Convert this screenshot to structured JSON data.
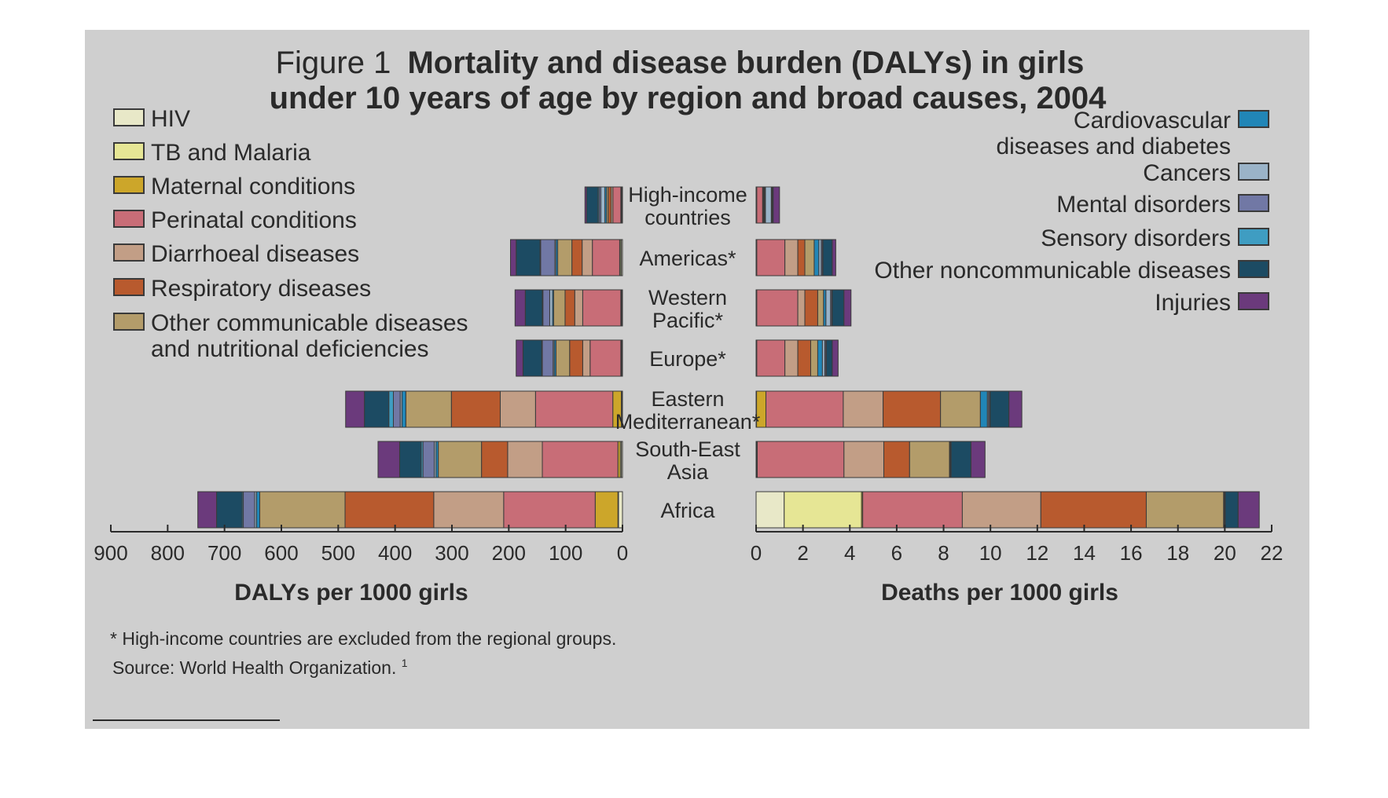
{
  "figure": {
    "title_prefix": "Figure 1",
    "title_line1": "Mortality and disease burden (DALYs) in girls",
    "title_line2": "under 10 years of age by region and broad causes, 2004",
    "footnote": "* High-income countries are excluded from the regional groups.",
    "source": "Source: World Health Organization.",
    "source_ref": "1"
  },
  "colors": {
    "background": "#cfcfcf",
    "HIV": "#e8e8c8",
    "TB and Malaria": "#e6e695",
    "Maternal conditions": "#cca62a",
    "Perinatal conditions": "#c86d77",
    "Diarrhoeal diseases": "#c29e86",
    "Respiratory diseases": "#b85a2e",
    "Other communicable diseases and nutritional deficiencies": "#b39c6a",
    "Cardiovascular diseases and diabetes": "#2186b7",
    "Cancers": "#9ab3c8",
    "Mental disorders": "#7178a5",
    "Sensory disorders": "#3f9dc2",
    "Other noncommunicable diseases": "#1c4b63",
    "Injuries": "#6b3a7c"
  },
  "legend_left": [
    {
      "label": "HIV",
      "key": "HIV"
    },
    {
      "label": "TB and Malaria",
      "key": "TB and Malaria"
    },
    {
      "label": "Maternal conditions",
      "key": "Maternal conditions"
    },
    {
      "label": "Perinatal conditions",
      "key": "Perinatal conditions"
    },
    {
      "label": "Diarrhoeal diseases",
      "key": "Diarrhoeal diseases"
    },
    {
      "label": "Respiratory diseases",
      "key": "Respiratory diseases"
    },
    {
      "label": "Other communicable diseases",
      "label2": "and nutritional deficiencies",
      "key": "Other communicable diseases and nutritional deficiencies"
    }
  ],
  "legend_right": [
    {
      "label": "Cardiovascular",
      "label2": "diseases and diabetes",
      "key": "Cardiovascular diseases and diabetes"
    },
    {
      "label": "Cancers",
      "key": "Cancers"
    },
    {
      "label": "Mental disorders",
      "key": "Mental disorders"
    },
    {
      "label": "Sensory disorders",
      "key": "Sensory disorders"
    },
    {
      "label": "Other noncommunicable diseases",
      "key": "Other noncommunicable diseases"
    },
    {
      "label": "Injuries",
      "key": "Injuries"
    }
  ],
  "chart_data": [
    {
      "type": "bar",
      "orientation": "horizontal",
      "stacked": true,
      "direction": "right-to-left",
      "xlabel": "DALYs per 1000 girls",
      "xlim": [
        0,
        900
      ],
      "xticks": [
        "900",
        "800",
        "700",
        "600",
        "500",
        "400",
        "300",
        "200",
        "100",
        "0"
      ],
      "categories": [
        {
          "line1": "High-income",
          "line2": "countries"
        },
        {
          "line1": "Americas*",
          "line2": ""
        },
        {
          "line1": "Western",
          "line2": "Pacific*"
        },
        {
          "line1": "Europe*",
          "line2": ""
        },
        {
          "line1": "Eastern",
          "line2": "Mediterranean*"
        },
        {
          "line1": "South-East",
          "line2": "Asia"
        },
        {
          "line1": "Africa",
          "line2": ""
        }
      ],
      "series": [
        {
          "name": "HIV",
          "values": [
            1,
            2,
            1,
            1,
            1,
            2,
            7
          ]
        },
        {
          "name": "TB and Malaria",
          "values": [
            1,
            2,
            1,
            1,
            1,
            2,
            1
          ]
        },
        {
          "name": "Maternal conditions",
          "values": [
            1,
            1,
            1,
            1,
            15,
            4,
            40
          ]
        },
        {
          "name": "Perinatal conditions",
          "values": [
            14,
            48,
            67,
            54,
            136,
            133,
            161
          ]
        },
        {
          "name": "Diarrhoeal diseases",
          "values": [
            3,
            18,
            14,
            13,
            62,
            61,
            123
          ]
        },
        {
          "name": "Respiratory diseases",
          "values": [
            5,
            18,
            17,
            23,
            86,
            46,
            156
          ]
        },
        {
          "name": "Other communicable diseases and nutritional deficiencies",
          "values": [
            3,
            25,
            20,
            24,
            80,
            76,
            150
          ]
        },
        {
          "name": "Cardiovascular diseases and diabetes",
          "values": [
            3,
            3,
            2,
            3,
            7,
            4,
            6
          ]
        },
        {
          "name": "Cancers",
          "values": [
            7,
            2,
            5,
            2,
            3,
            3,
            3
          ]
        },
        {
          "name": "Mental disorders",
          "values": [
            3,
            25,
            12,
            19,
            12,
            20,
            20
          ]
        },
        {
          "name": "Sensory disorders",
          "values": [
            2,
            1,
            1,
            1,
            8,
            3,
            2
          ]
        },
        {
          "name": "Other noncommunicable diseases",
          "values": [
            20,
            42,
            30,
            33,
            43,
            38,
            45
          ]
        },
        {
          "name": "Injuries",
          "values": [
            3,
            10,
            18,
            12,
            33,
            38,
            33
          ]
        }
      ]
    },
    {
      "type": "bar",
      "orientation": "horizontal",
      "stacked": true,
      "direction": "left-to-right",
      "xlabel": "Deaths per 1000 girls",
      "xlim": [
        0,
        22
      ],
      "xticks": [
        "0",
        "2",
        "4",
        "6",
        "8",
        "10",
        "12",
        "14",
        "16",
        "18",
        "20",
        "22"
      ],
      "categories": [
        {
          "line1": "High-income",
          "line2": "countries"
        },
        {
          "line1": "Americas*",
          "line2": ""
        },
        {
          "line1": "Western",
          "line2": "Pacific*"
        },
        {
          "line1": "Europe*",
          "line2": ""
        },
        {
          "line1": "Eastern",
          "line2": "Mediterranean*"
        },
        {
          "line1": "South-East",
          "line2": "Asia"
        },
        {
          "line1": "Africa",
          "line2": ""
        }
      ],
      "series": [
        {
          "name": "HIV",
          "values": [
            0.01,
            0.01,
            0.01,
            0.01,
            0.01,
            0.02,
            1.2
          ]
        },
        {
          "name": "TB and Malaria",
          "values": [
            0.01,
            0.01,
            0.01,
            0.01,
            0.01,
            0.02,
            3.3
          ]
        },
        {
          "name": "Maternal conditions",
          "values": [
            0.01,
            0.01,
            0.01,
            0.01,
            0.4,
            0.01,
            0.05
          ]
        },
        {
          "name": "Perinatal conditions",
          "values": [
            0.25,
            1.2,
            1.75,
            1.2,
            3.3,
            3.7,
            4.25
          ]
        },
        {
          "name": "Diarrhoeal diseases",
          "values": [
            0.03,
            0.55,
            0.3,
            0.55,
            1.7,
            1.7,
            3.35
          ]
        },
        {
          "name": "Respiratory diseases",
          "values": [
            0.03,
            0.3,
            0.55,
            0.55,
            2.45,
            1.1,
            4.5
          ]
        },
        {
          "name": "Other communicable diseases and nutritional deficiencies",
          "values": [
            0.03,
            0.4,
            0.25,
            0.3,
            1.7,
            1.7,
            3.3
          ]
        },
        {
          "name": "Cardiovascular diseases and diabetes",
          "values": [
            0.03,
            0.2,
            0.1,
            0.2,
            0.3,
            0.02,
            0.02
          ]
        },
        {
          "name": "Cancers",
          "values": [
            0.25,
            0.1,
            0.2,
            0.1,
            0.05,
            0.02,
            0.02
          ]
        },
        {
          "name": "Mental disorders",
          "values": [
            0.03,
            0.05,
            0.05,
            0.05,
            0.05,
            0.02,
            0.02
          ]
        },
        {
          "name": "Sensory disorders",
          "values": [
            0.01,
            0.02,
            0.02,
            0.02,
            0.02,
            0.01,
            0.01
          ]
        },
        {
          "name": "Other noncommunicable diseases",
          "values": [
            0.04,
            0.4,
            0.5,
            0.25,
            0.8,
            0.85,
            0.55
          ]
        },
        {
          "name": "Injuries",
          "values": [
            0.27,
            0.15,
            0.3,
            0.25,
            0.55,
            0.6,
            0.9
          ]
        }
      ]
    }
  ]
}
